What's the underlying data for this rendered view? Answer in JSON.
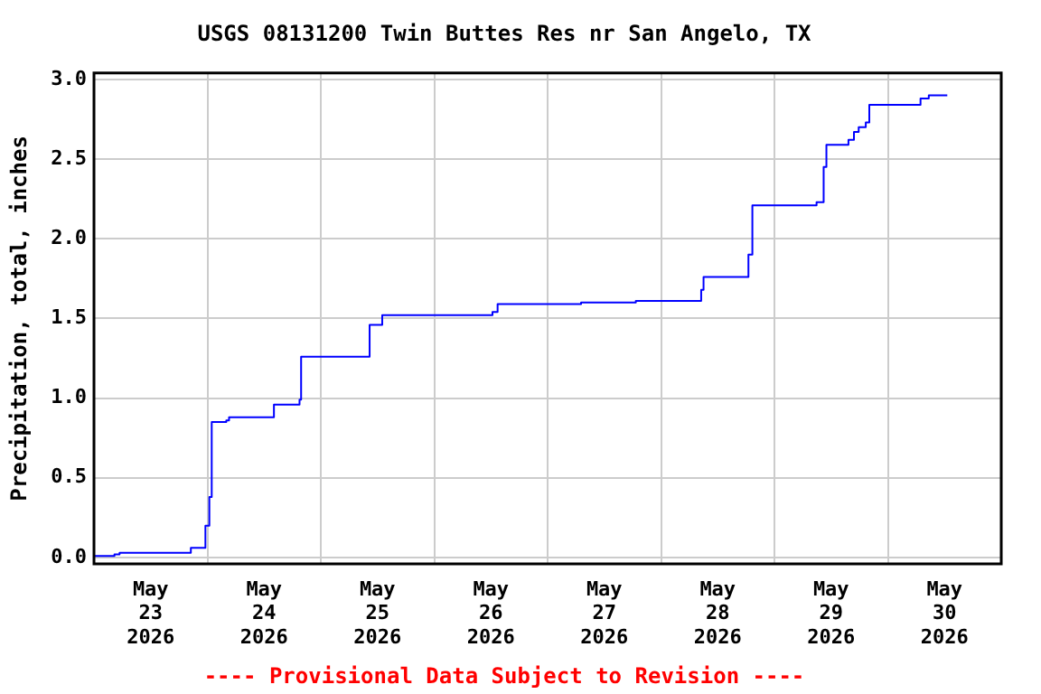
{
  "chart_data": {
    "type": "step",
    "title": "USGS 08131200 Twin Buttes Res nr San Angelo, TX",
    "ylabel": "Precipitation, total, inches",
    "annotations": [
      "---- Provisional Data Subject to Revision ----"
    ],
    "x": [
      "2026-05-23T00:00",
      "2026-05-23T04:20",
      "2026-05-23T05:25",
      "2026-05-23T20:30",
      "2026-05-23T23:35",
      "2026-05-24T00:25",
      "2026-05-24T00:55",
      "2026-05-24T04:00",
      "2026-05-24T04:35",
      "2026-05-24T14:05",
      "2026-05-24T19:30",
      "2026-05-24T19:50",
      "2026-05-25T10:20",
      "2026-05-25T13:00",
      "2026-05-26T12:20",
      "2026-05-26T13:25",
      "2026-05-27T07:05",
      "2026-05-27T18:40",
      "2026-05-28T08:30",
      "2026-05-28T09:00",
      "2026-05-28T18:30",
      "2026-05-28T19:20",
      "2026-05-29T08:55",
      "2026-05-29T10:25",
      "2026-05-29T11:00",
      "2026-05-29T15:40",
      "2026-05-29T16:50",
      "2026-05-29T17:50",
      "2026-05-29T19:20",
      "2026-05-29T20:05",
      "2026-05-30T06:55",
      "2026-05-30T08:40",
      "2026-05-30T12:35"
    ],
    "series": [
      {
        "color": "#0000ff",
        "values": [
          0.01,
          0.02,
          0.03,
          0.06,
          0.2,
          0.38,
          0.85,
          0.86,
          0.88,
          0.96,
          0.99,
          1.26,
          1.46,
          1.52,
          1.54,
          1.59,
          1.6,
          1.61,
          1.68,
          1.76,
          1.9,
          2.21,
          2.23,
          2.45,
          2.59,
          2.62,
          2.67,
          2.7,
          2.73,
          2.84,
          2.88,
          2.9,
          2.9
        ]
      }
    ],
    "xlim": [
      "2026-05-23T00:00",
      "2026-05-31T00:00"
    ],
    "xticks": [
      {
        "value": "2026-05-23T12:00",
        "label": "May 23 2026"
      },
      {
        "value": "2026-05-24T00:00",
        "label": null
      },
      {
        "value": "2026-05-24T12:00",
        "label": "May 24 2026"
      },
      {
        "value": "2026-05-25T00:00",
        "label": null
      },
      {
        "value": "2026-05-25T12:00",
        "label": "May 25 2026"
      },
      {
        "value": "2026-05-26T00:00",
        "label": null
      },
      {
        "value": "2026-05-26T12:00",
        "label": "May 26 2026"
      },
      {
        "value": "2026-05-27T00:00",
        "label": null
      },
      {
        "value": "2026-05-27T12:00",
        "label": "May 27 2026"
      },
      {
        "value": "2026-05-28T00:00",
        "label": null
      },
      {
        "value": "2026-05-28T12:00",
        "label": "May 28 2026"
      },
      {
        "value": "2026-05-29T00:00",
        "label": null
      },
      {
        "value": "2026-05-29T12:00",
        "label": "May 29 2026"
      },
      {
        "value": "2026-05-30T00:00",
        "label": null
      },
      {
        "value": "2026-05-30T12:00",
        "label": "May 30 2026"
      }
    ],
    "ylim": [
      -0.04,
      3.04
    ],
    "yticks": [
      {
        "value": 0,
        "label": "0.0"
      },
      {
        "value": 0.5,
        "label": "0.5"
      },
      {
        "value": 1,
        "label": "1.0"
      },
      {
        "value": 1.5,
        "label": "1.5"
      },
      {
        "value": 2,
        "label": "2.0"
      },
      {
        "value": 2.5,
        "label": "2.5"
      },
      {
        "value": 3,
        "label": "3.0"
      }
    ],
    "grid": true,
    "legend": false,
    "marker": "none",
    "line_style": "solid"
  }
}
